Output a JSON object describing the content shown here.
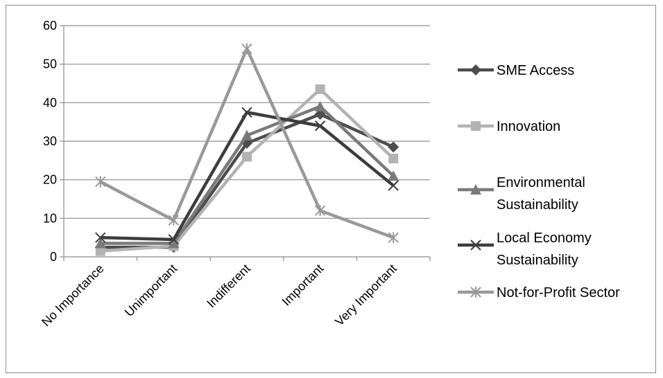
{
  "chart_data": {
    "type": "line",
    "categories": [
      "No Importance",
      "Unimportant",
      "Indifferent",
      "Important",
      "Very Important"
    ],
    "ylim": [
      0,
      60
    ],
    "yticks": [
      0,
      10,
      20,
      30,
      40,
      50,
      60
    ],
    "grid": "horizontal",
    "legend_position": "right",
    "series": [
      {
        "name": "SME Access",
        "lines": [
          "SME Access"
        ],
        "marker": "diamond",
        "color": "#4d4d4d",
        "values": [
          2.5,
          2.5,
          29.5,
          37,
          28.5
        ]
      },
      {
        "name": "Innovation",
        "lines": [
          "Innovation"
        ],
        "marker": "square",
        "color": "#b3b3b3",
        "values": [
          1.5,
          2.8,
          26,
          43.5,
          25.5
        ]
      },
      {
        "name": "Environmental Sustainability",
        "lines": [
          "Environmental",
          "Sustainability"
        ],
        "marker": "triangle",
        "color": "#7a7a7a",
        "values": [
          3.5,
          3.5,
          31.5,
          39,
          21
        ]
      },
      {
        "name": "Local Economy Sustainability",
        "lines": [
          "Local Economy",
          "Sustainability"
        ],
        "marker": "x",
        "color": "#3d3d3d",
        "values": [
          5,
          4.5,
          37.5,
          34,
          18.5
        ]
      },
      {
        "name": "Not-for-Profit Sector",
        "lines": [
          "Not-for-Profit Sector"
        ],
        "marker": "star",
        "color": "#999999",
        "values": [
          19.5,
          9.5,
          54,
          12,
          5
        ]
      }
    ]
  }
}
